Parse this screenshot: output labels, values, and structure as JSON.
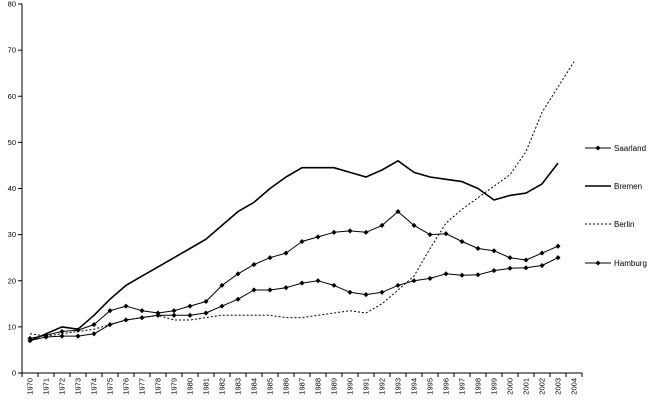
{
  "chart_data": {
    "type": "line",
    "x": [
      1970,
      1971,
      1972,
      1973,
      1974,
      1975,
      1976,
      1977,
      1978,
      1979,
      1980,
      1981,
      1982,
      1983,
      1984,
      1985,
      1986,
      1987,
      1988,
      1989,
      1990,
      1991,
      1992,
      1993,
      1994,
      1995,
      1996,
      1997,
      1998,
      1999,
      2000,
      2001,
      2002,
      2003,
      2004
    ],
    "ylim": [
      0,
      80
    ],
    "y_ticks": [
      0,
      10,
      20,
      30,
      40,
      50,
      60,
      70,
      80
    ],
    "grid": false,
    "legend_position": "right",
    "series": [
      {
        "name": "Saarland",
        "line": "solid-markers",
        "values": [
          7.5,
          8.2,
          9.0,
          9.3,
          10.5,
          13.5,
          14.5,
          13.5,
          13.0,
          13.5,
          14.5,
          15.5,
          19.0,
          21.5,
          23.5,
          25.0,
          26.0,
          28.5,
          29.5,
          30.5,
          30.8,
          30.5,
          32.0,
          35.0,
          32.0,
          30.0,
          30.2,
          28.5,
          27.0,
          26.5,
          25.0,
          24.5,
          26.0,
          27.5,
          null
        ]
      },
      {
        "name": "Bremen",
        "line": "solid-bold",
        "values": [
          7.0,
          8.5,
          10.0,
          9.5,
          12.5,
          16.0,
          19.0,
          21.0,
          23.0,
          25.0,
          27.0,
          29.0,
          32.0,
          35.0,
          37.0,
          40.0,
          42.5,
          44.5,
          44.5,
          44.5,
          43.5,
          42.5,
          44.0,
          46.0,
          43.5,
          42.5,
          42.0,
          41.5,
          40.0,
          37.5,
          38.5,
          39.0,
          41.0,
          45.5,
          null
        ]
      },
      {
        "name": "Berlin",
        "line": "dotted",
        "values": [
          8.5,
          8.0,
          8.5,
          9.0,
          9.5,
          10.5,
          11.5,
          12.0,
          12.5,
          11.5,
          11.5,
          12.0,
          12.5,
          12.5,
          12.5,
          12.5,
          12.0,
          12.0,
          12.5,
          13.0,
          13.5,
          13.0,
          15.0,
          18.0,
          21.0,
          27.0,
          32.5,
          35.5,
          38.0,
          40.5,
          43.0,
          48.0,
          56.5,
          62.0,
          67.5
        ]
      },
      {
        "name": "Hamburg",
        "line": "solid-markers",
        "values": [
          7.0,
          7.8,
          8.0,
          8.0,
          8.5,
          10.5,
          11.5,
          12.0,
          12.5,
          12.5,
          12.5,
          13.0,
          14.5,
          16.0,
          18.0,
          18.0,
          18.5,
          19.5,
          20.0,
          19.0,
          17.5,
          17.0,
          17.5,
          19.0,
          20.0,
          20.5,
          21.5,
          21.2,
          21.3,
          22.2,
          22.7,
          22.8,
          23.3,
          25.0,
          null
        ]
      }
    ]
  }
}
